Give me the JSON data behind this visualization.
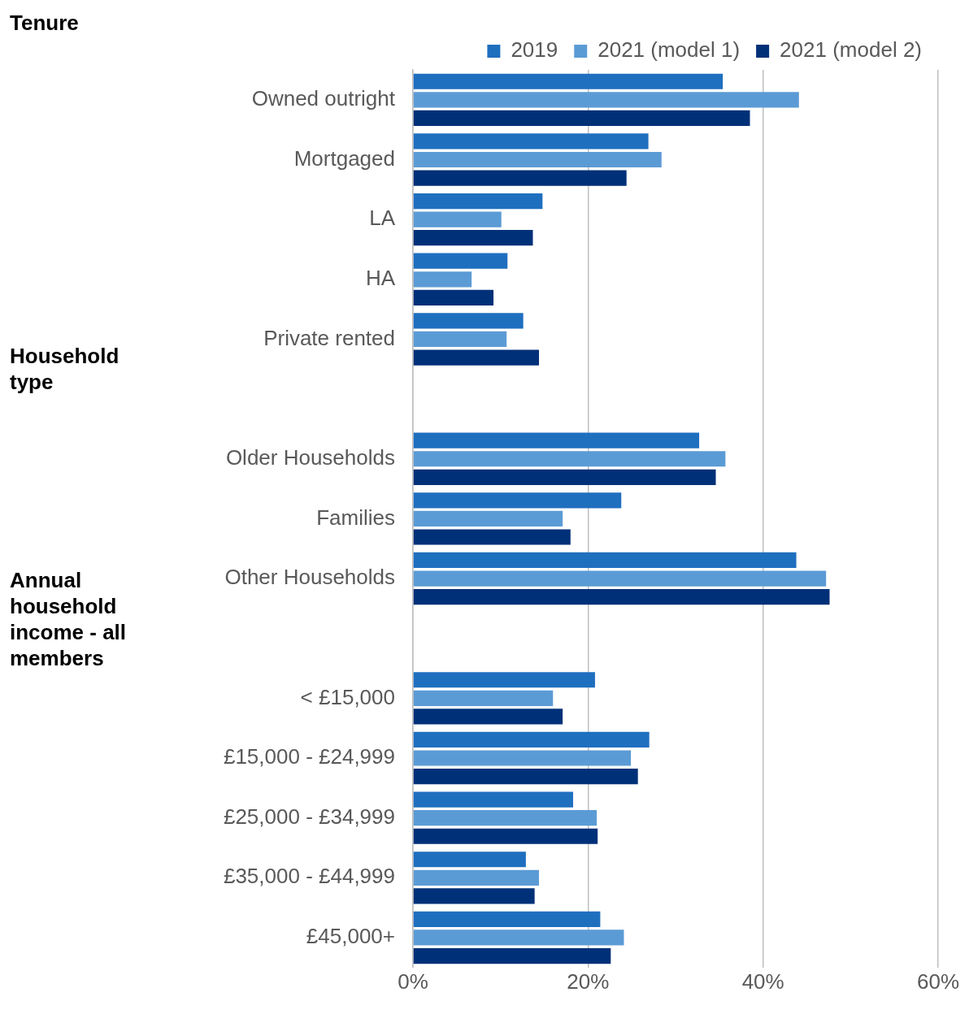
{
  "chart_data": {
    "type": "bar",
    "orientation": "horizontal",
    "categories": [
      "Owned outright",
      "Mortgaged",
      "LA",
      "HA",
      "Private rented",
      null,
      "Older Households",
      "Families",
      "Other Households",
      null,
      "< £15,000",
      "£15,000 - £24,999",
      "£25,000 - £34,999",
      "£35,000 - £44,999",
      "£45,000+"
    ],
    "series": [
      {
        "name": "2019",
        "color": "#1f6fbf",
        "values": [
          35.4,
          26.9,
          14.8,
          10.8,
          12.6,
          null,
          32.7,
          23.8,
          43.8,
          null,
          20.8,
          27.0,
          18.3,
          12.9,
          21.4
        ]
      },
      {
        "name": "2021 (model 1)",
        "color": "#5b9bd5",
        "values": [
          44.1,
          28.4,
          10.1,
          6.7,
          10.7,
          null,
          35.7,
          17.1,
          47.2,
          null,
          16.0,
          24.9,
          21.0,
          14.4,
          24.1
        ]
      },
      {
        "name": "2021 (model 2)",
        "color": "#003078",
        "values": [
          38.5,
          24.4,
          13.7,
          9.2,
          14.4,
          null,
          34.6,
          18.0,
          47.6,
          null,
          17.1,
          25.7,
          21.1,
          13.9,
          22.6
        ]
      }
    ],
    "xlim": [
      0,
      60
    ],
    "xticks": [
      {
        "value": 0,
        "label": "0%"
      },
      {
        "value": 20,
        "label": "20%"
      },
      {
        "value": 40,
        "label": "40%"
      },
      {
        "value": 60,
        "label": "60%"
      }
    ],
    "grid": "x",
    "legend": "top right",
    "annotations": [
      "Tenure",
      "Household type",
      "Annual household income - all members"
    ]
  }
}
